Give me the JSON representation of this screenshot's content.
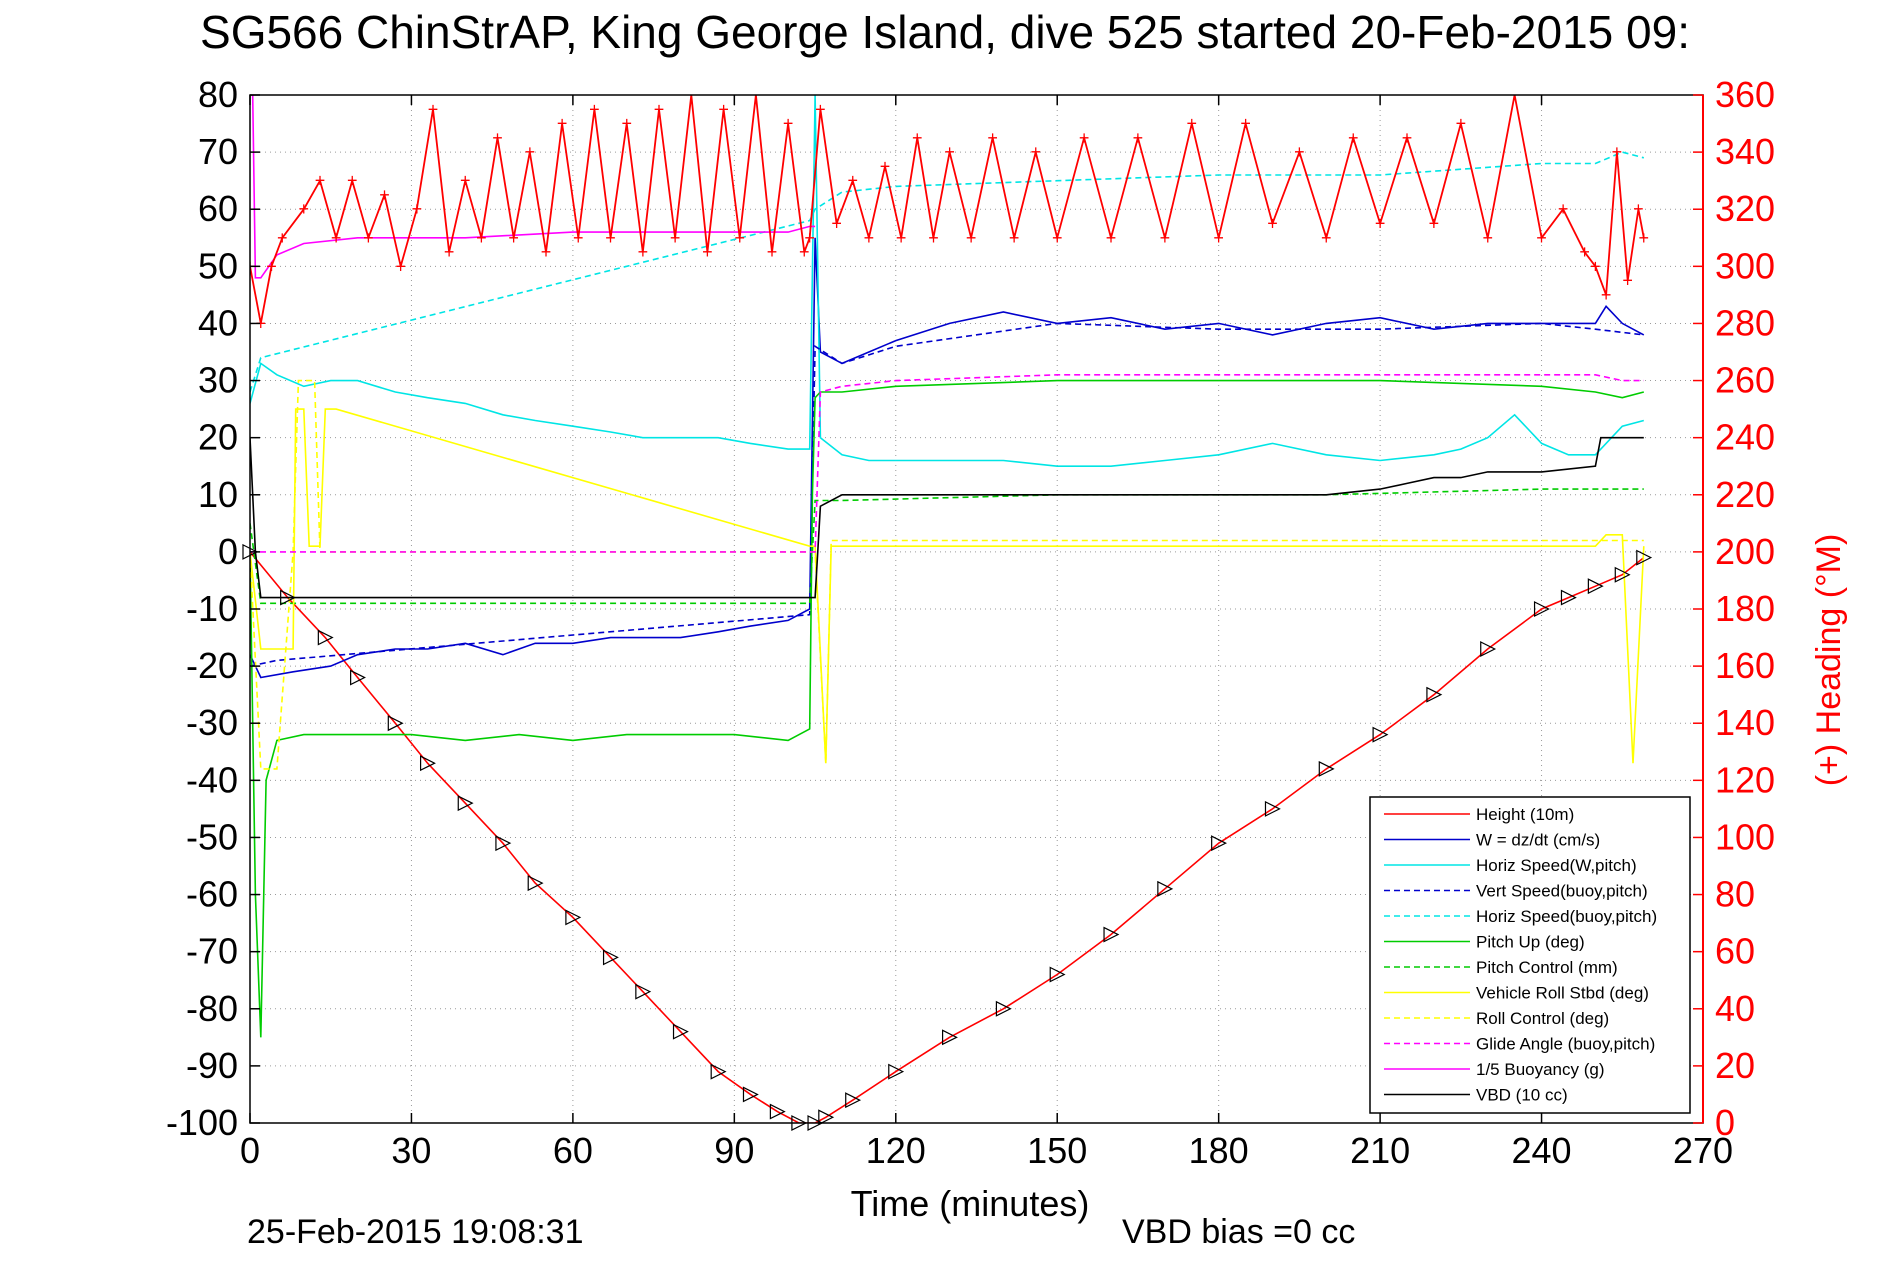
{
  "chart_data": {
    "type": "line",
    "title": "SG566 ChinStrAP, King George Island, dive 525 started 20-Feb-2015 09:",
    "xlabel": "Time (minutes)",
    "ylabel_right": "(+) Heading (°M)",
    "xlim": [
      0,
      270
    ],
    "ylim_left": [
      -100,
      80
    ],
    "ylim_right": [
      0,
      360
    ],
    "x_ticks": [
      0,
      30,
      60,
      90,
      120,
      150,
      180,
      210,
      240,
      270
    ],
    "y_left_ticks": [
      80,
      70,
      60,
      50,
      40,
      30,
      20,
      10,
      0,
      -10,
      -20,
      -30,
      -40,
      -50,
      -60,
      -70,
      -80,
      -90,
      -100
    ],
    "y_right_ticks": [
      360,
      340,
      320,
      300,
      280,
      260,
      240,
      220,
      200,
      180,
      160,
      140,
      120,
      100,
      80,
      60,
      40,
      20,
      0
    ],
    "grid": true,
    "legend_position": "bottom-right",
    "colors": {
      "title": "#000000",
      "axes": "#000000",
      "right_axis": "#ff0000",
      "grid": "#9a9a9a"
    },
    "series": [
      {
        "name": "Height (10m)",
        "axis": "left",
        "color": "#ff0000",
        "dash": "",
        "x": [
          0,
          7,
          14,
          20,
          27,
          33,
          40,
          47,
          53,
          60,
          67,
          73,
          80,
          87,
          93,
          98,
          102,
          105,
          107,
          112,
          120,
          130,
          140,
          150,
          160,
          170,
          180,
          190,
          200,
          210,
          220,
          230,
          240,
          245,
          250,
          255,
          259
        ],
        "values": [
          0,
          -8,
          -15,
          -22,
          -30,
          -37,
          -44,
          -51,
          -58,
          -64,
          -71,
          -77,
          -84,
          -91,
          -95,
          -98,
          -100,
          -100,
          -99,
          -96,
          -91,
          -85,
          -80,
          -74,
          -67,
          -59,
          -51,
          -45,
          -38,
          -32,
          -25,
          -17,
          -10,
          -8,
          -6,
          -4,
          -1
        ]
      },
      {
        "name": "W = dz/dt (cm/s)",
        "axis": "left",
        "color": "#0000cc",
        "dash": "",
        "x": [
          0,
          2,
          8,
          15,
          20,
          27,
          33,
          40,
          47,
          53,
          60,
          67,
          73,
          80,
          87,
          93,
          100,
          104,
          105,
          106,
          110,
          115,
          120,
          130,
          140,
          150,
          160,
          170,
          180,
          190,
          200,
          210,
          220,
          230,
          240,
          245,
          250,
          252,
          255,
          259
        ],
        "values": [
          -18,
          -22,
          -21,
          -20,
          -18,
          -17,
          -17,
          -16,
          -18,
          -16,
          -16,
          -15,
          -15,
          -15,
          -14,
          -13,
          -12,
          -10,
          55,
          35,
          33,
          35,
          37,
          40,
          42,
          40,
          41,
          39,
          40,
          38,
          40,
          41,
          39,
          40,
          40,
          40,
          40,
          43,
          40,
          38
        ]
      },
      {
        "name": "Horiz Speed(W,pitch)",
        "axis": "left",
        "color": "#00e5e5",
        "dash": "",
        "x": [
          0,
          2,
          5,
          10,
          15,
          20,
          27,
          33,
          40,
          47,
          53,
          60,
          67,
          73,
          80,
          87,
          93,
          100,
          104,
          105,
          106,
          110,
          115,
          120,
          130,
          140,
          150,
          160,
          170,
          180,
          190,
          200,
          210,
          220,
          225,
          230,
          235,
          240,
          245,
          250,
          255,
          259
        ],
        "values": [
          26,
          33,
          31,
          29,
          30,
          30,
          28,
          27,
          26,
          24,
          23,
          22,
          21,
          20,
          20,
          20,
          19,
          18,
          18,
          80,
          20,
          17,
          16,
          16,
          16,
          16,
          15,
          15,
          16,
          17,
          19,
          17,
          16,
          17,
          18,
          20,
          24,
          19,
          17,
          17,
          22,
          23
        ]
      },
      {
        "name": "Vert Speed(buoy,pitch)",
        "axis": "left",
        "color": "#0000cc",
        "dash": "6,4",
        "x": [
          0,
          5,
          104,
          105,
          110,
          120,
          150,
          180,
          210,
          240,
          250,
          259
        ],
        "values": [
          -20,
          -19,
          -11,
          36,
          33,
          36,
          40,
          39,
          39,
          40,
          39,
          38
        ]
      },
      {
        "name": "Horiz Speed(buoy,pitch)",
        "axis": "left",
        "color": "#00e5e5",
        "dash": "6,4",
        "x": [
          0,
          2,
          104,
          105,
          110,
          120,
          150,
          180,
          210,
          240,
          245,
          250,
          255,
          259
        ],
        "values": [
          28,
          34,
          58,
          60,
          63,
          64,
          65,
          66,
          66,
          68,
          68,
          68,
          70,
          69
        ]
      },
      {
        "name": "Pitch Up (deg)",
        "axis": "left",
        "color": "#00cc00",
        "dash": "",
        "x": [
          0,
          1,
          2,
          3,
          5,
          10,
          20,
          30,
          40,
          50,
          60,
          70,
          80,
          90,
          100,
          104,
          104.5,
          105,
          106,
          110,
          120,
          150,
          180,
          210,
          240,
          250,
          255,
          259
        ],
        "values": [
          0,
          -60,
          -85,
          -40,
          -33,
          -32,
          -32,
          -32,
          -33,
          -32,
          -33,
          -32,
          -32,
          -32,
          -33,
          -31,
          10,
          27,
          28,
          28,
          29,
          30,
          30,
          30,
          29,
          28,
          27,
          28
        ]
      },
      {
        "name": "Pitch Control (mm)",
        "axis": "left",
        "color": "#00cc00",
        "dash": "6,4",
        "x": [
          0,
          2,
          5,
          30,
          60,
          90,
          104,
          105,
          110,
          150,
          200,
          240,
          255,
          259
        ],
        "values": [
          5,
          -9,
          -9,
          -9,
          -9,
          -9,
          -9,
          9,
          9,
          10,
          10,
          11,
          11,
          11
        ]
      },
      {
        "name": "Vehicle Roll Stbd (deg)",
        "axis": "left",
        "color": "#ffff00",
        "dash": "",
        "x": [
          0,
          2,
          5,
          8,
          8.5,
          10,
          11,
          13,
          14,
          16,
          104,
          105,
          107,
          108,
          120,
          160,
          200,
          240,
          250,
          252,
          255,
          257,
          259
        ],
        "values": [
          0,
          -17,
          -17,
          -17,
          25,
          25,
          1,
          1,
          25,
          25,
          1,
          1,
          -37,
          1,
          1,
          1,
          1,
          1,
          1,
          3,
          3,
          -37,
          1
        ]
      },
      {
        "name": "Roll Control (deg)",
        "axis": "left",
        "color": "#ffff00",
        "dash": "6,4",
        "x": [
          0,
          2,
          5,
          8,
          9,
          12,
          13,
          104,
          105,
          107,
          108,
          120,
          160,
          200,
          240,
          250,
          255,
          259
        ],
        "values": [
          0,
          -38,
          -38,
          0,
          30,
          30,
          0,
          0,
          0,
          -37,
          2,
          2,
          2,
          2,
          2,
          2,
          2,
          2
        ]
      },
      {
        "name": "Glide Angle (buoy,pitch)",
        "axis": "left",
        "color": "#ff00ff",
        "dash": "6,4",
        "x": [
          0,
          2,
          5,
          104,
          105,
          106,
          110,
          120,
          150,
          180,
          210,
          240,
          250,
          255,
          259
        ],
        "values": [
          0,
          0,
          0,
          0,
          0,
          28,
          29,
          30,
          31,
          31,
          31,
          31,
          31,
          30,
          30
        ]
      },
      {
        "name": "1/5 Buoyancy (g)",
        "axis": "left",
        "color": "#ff00ff",
        "dash": "",
        "x": [
          0,
          0.5,
          1,
          2,
          5,
          10,
          20,
          40,
          60,
          80,
          100,
          104,
          105
        ],
        "values": [
          80,
          80,
          48,
          48,
          52,
          54,
          55,
          55,
          56,
          56,
          56,
          57,
          57
        ]
      },
      {
        "name": "VBD (10 cc)",
        "axis": "left",
        "color": "#000000",
        "dash": "",
        "x": [
          0,
          1,
          2,
          104,
          105,
          106,
          110,
          120,
          140,
          160,
          180,
          200,
          210,
          215,
          220,
          225,
          230,
          240,
          250,
          251,
          255,
          259
        ],
        "values": [
          20,
          0,
          -8,
          -8,
          -8,
          8,
          10,
          10,
          10,
          10,
          10,
          10,
          11,
          12,
          13,
          13,
          14,
          14,
          15,
          20,
          20,
          20
        ]
      },
      {
        "name": "(+) Heading (°M)",
        "axis": "right",
        "color": "#ff0000",
        "dash": "",
        "x": [
          0,
          2,
          4,
          6,
          10,
          13,
          16,
          19,
          22,
          25,
          28,
          31,
          34,
          37,
          40,
          43,
          46,
          49,
          52,
          55,
          58,
          61,
          64,
          67,
          70,
          73,
          76,
          79,
          82,
          85,
          88,
          91,
          94,
          97,
          100,
          103,
          104,
          106,
          109,
          112,
          115,
          118,
          121,
          124,
          127,
          130,
          134,
          138,
          142,
          146,
          150,
          155,
          160,
          165,
          170,
          175,
          180,
          185,
          190,
          195,
          200,
          205,
          210,
          215,
          220,
          225,
          230,
          235,
          240,
          244,
          248,
          250,
          252,
          254,
          256,
          258,
          259
        ],
        "values": [
          300,
          280,
          300,
          310,
          320,
          330,
          310,
          330,
          310,
          325,
          300,
          320,
          355,
          305,
          330,
          310,
          345,
          310,
          340,
          305,
          350,
          310,
          355,
          310,
          350,
          305,
          355,
          310,
          360,
          305,
          355,
          310,
          360,
          305,
          350,
          305,
          310,
          355,
          315,
          330,
          310,
          335,
          310,
          345,
          310,
          340,
          310,
          345,
          310,
          340,
          310,
          345,
          310,
          345,
          310,
          350,
          310,
          350,
          315,
          340,
          310,
          345,
          315,
          345,
          315,
          350,
          310,
          360,
          310,
          320,
          305,
          300,
          290,
          340,
          295,
          320,
          310
        ]
      }
    ],
    "markers": {
      "description": "black triangle markers along Height trace",
      "color": "#000000",
      "series": "Height (10m)"
    },
    "footer_left": "25-Feb-2015 19:08:31",
    "footer_right": "VBD bias =0 cc"
  }
}
